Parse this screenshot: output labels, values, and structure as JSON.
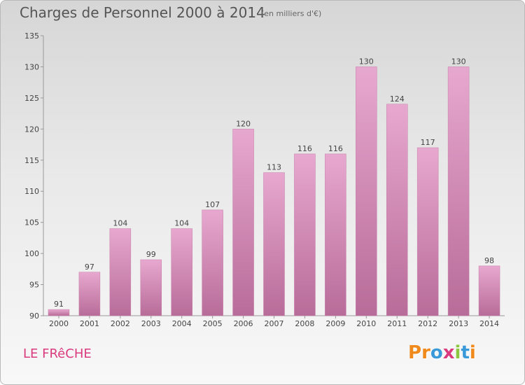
{
  "chart_data": {
    "type": "bar",
    "title": "Charges de Personnel 2000 à 2014",
    "subtitle": "(en milliers d'€)",
    "categories": [
      "2000",
      "2001",
      "2002",
      "2003",
      "2004",
      "2005",
      "2006",
      "2007",
      "2008",
      "2009",
      "2010",
      "2011",
      "2012",
      "2013",
      "2014"
    ],
    "values": [
      91,
      97,
      104,
      99,
      104,
      107,
      120,
      113,
      116,
      116,
      130,
      124,
      117,
      130,
      98
    ],
    "ylim": [
      90,
      135
    ],
    "yticks": [
      90,
      95,
      100,
      105,
      110,
      115,
      120,
      125,
      130,
      135
    ],
    "grid": false,
    "bar_color": "#d98cba"
  },
  "footer": {
    "location": "LE FRêCHE",
    "brand_letters": [
      "P",
      "r",
      "o",
      "x",
      "i",
      "t",
      "i"
    ],
    "brand_colors": [
      "#f08a1c",
      "#f08a1c",
      "#3a9ad9",
      "#d93b7e",
      "#8dc63f",
      "#3a9ad9",
      "#f08a1c"
    ]
  }
}
